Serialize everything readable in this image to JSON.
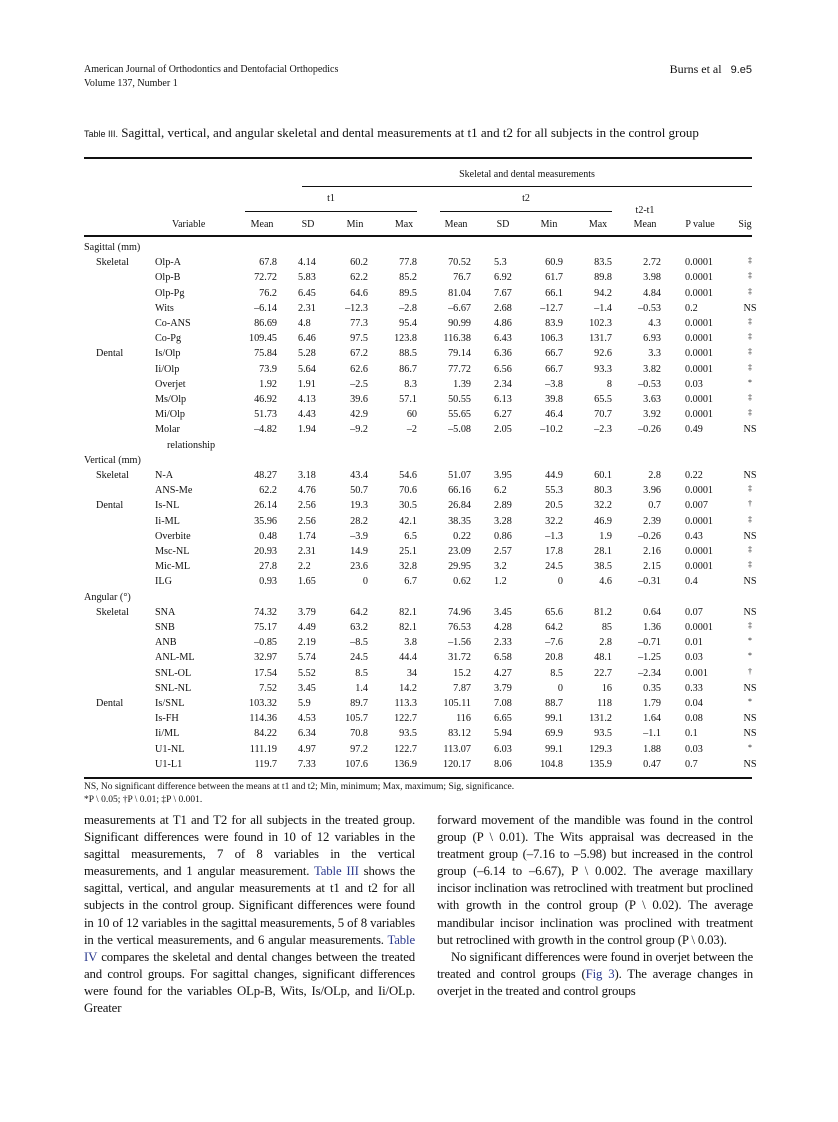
{
  "header": {
    "journal": "American Journal of Orthodontics and Dentofacial Orthopedics",
    "volume": "Volume 137, Number 1",
    "authors": "Burns et al",
    "page": "9.e5"
  },
  "table": {
    "label": "Table III.",
    "title": "Sagittal, vertical, and angular skeletal and dental measurements at t1 and t2 for all subjects in the control group",
    "spanner": "Skeletal and dental measurements",
    "t1": "t1",
    "t2": "t2",
    "diff_top": "t2-t1",
    "columns": [
      "Variable",
      "Mean",
      "SD",
      "Min",
      "Max",
      "Mean",
      "SD",
      "Min",
      "Max",
      "Mean",
      "P value",
      "Sig"
    ],
    "rows": [
      {
        "section": "Sagittal (mm)"
      },
      {
        "group": "Skeletal",
        "var": "Olp-A",
        "v": [
          "67.8",
          "4.14",
          "60.2",
          "77.8",
          "70.52",
          "5.3",
          "60.9",
          "83.5",
          "2.72",
          "0.0001",
          "‡"
        ]
      },
      {
        "var": "Olp-B",
        "v": [
          "72.72",
          "5.83",
          "62.2",
          "85.2",
          "76.7",
          "6.92",
          "61.7",
          "89.8",
          "3.98",
          "0.0001",
          "‡"
        ]
      },
      {
        "var": "Olp-Pg",
        "v": [
          "76.2",
          "6.45",
          "64.6",
          "89.5",
          "81.04",
          "7.67",
          "66.1",
          "94.2",
          "4.84",
          "0.0001",
          "‡"
        ]
      },
      {
        "var": "Wits",
        "v": [
          "–6.14",
          "2.31",
          "–12.3",
          "–2.8",
          "–6.67",
          "2.68",
          "–12.7",
          "–1.4",
          "–0.53",
          "0.2",
          "NS"
        ]
      },
      {
        "var": "Co-ANS",
        "v": [
          "86.69",
          "4.8",
          "77.3",
          "95.4",
          "90.99",
          "4.86",
          "83.9",
          "102.3",
          "4.3",
          "0.0001",
          "‡"
        ]
      },
      {
        "var": "Co-Pg",
        "v": [
          "109.45",
          "6.46",
          "97.5",
          "123.8",
          "116.38",
          "6.43",
          "106.3",
          "131.7",
          "6.93",
          "0.0001",
          "‡"
        ]
      },
      {
        "group": "Dental",
        "var": "Is/Olp",
        "v": [
          "75.84",
          "5.28",
          "67.2",
          "88.5",
          "79.14",
          "6.36",
          "66.7",
          "92.6",
          "3.3",
          "0.0001",
          "‡"
        ]
      },
      {
        "var": "Ii/Olp",
        "v": [
          "73.9",
          "5.64",
          "62.6",
          "86.7",
          "77.72",
          "6.56",
          "66.7",
          "93.3",
          "3.82",
          "0.0001",
          "‡"
        ]
      },
      {
        "var": "Overjet",
        "v": [
          "1.92",
          "1.91",
          "–2.5",
          "8.3",
          "1.39",
          "2.34",
          "–3.8",
          "8",
          "–0.53",
          "0.03",
          "*"
        ]
      },
      {
        "var": "Ms/Olp",
        "v": [
          "46.92",
          "4.13",
          "39.6",
          "57.1",
          "50.55",
          "6.13",
          "39.8",
          "65.5",
          "3.63",
          "0.0001",
          "‡"
        ]
      },
      {
        "var": "Mi/Olp",
        "v": [
          "51.73",
          "4.43",
          "42.9",
          "60",
          "55.65",
          "6.27",
          "46.4",
          "70.7",
          "3.92",
          "0.0001",
          "‡"
        ]
      },
      {
        "var": "Molar",
        "v": [
          "–4.82",
          "1.94",
          "–9.2",
          "–2",
          "–5.08",
          "2.05",
          "–10.2",
          "–2.3",
          "–0.26",
          "0.49",
          "NS"
        ]
      },
      {
        "cont": "relationship"
      },
      {
        "section": "Vertical (mm)"
      },
      {
        "group": "Skeletal",
        "var": "N-A",
        "v": [
          "48.27",
          "3.18",
          "43.4",
          "54.6",
          "51.07",
          "3.95",
          "44.9",
          "60.1",
          "2.8",
          "0.22",
          "NS"
        ]
      },
      {
        "var": "ANS-Me",
        "v": [
          "62.2",
          "4.76",
          "50.7",
          "70.6",
          "66.16",
          "6.2",
          "55.3",
          "80.3",
          "3.96",
          "0.0001",
          "‡"
        ]
      },
      {
        "group": "Dental",
        "var": "Is-NL",
        "v": [
          "26.14",
          "2.56",
          "19.3",
          "30.5",
          "26.84",
          "2.89",
          "20.5",
          "32.2",
          "0.7",
          "0.007",
          "†"
        ]
      },
      {
        "var": "Ii-ML",
        "v": [
          "35.96",
          "2.56",
          "28.2",
          "42.1",
          "38.35",
          "3.28",
          "32.2",
          "46.9",
          "2.39",
          "0.0001",
          "‡"
        ]
      },
      {
        "var": "Overbite",
        "v": [
          "0.48",
          "1.74",
          "–3.9",
          "6.5",
          "0.22",
          "0.86",
          "–1.3",
          "1.9",
          "–0.26",
          "0.43",
          "NS"
        ]
      },
      {
        "var": "Msc-NL",
        "v": [
          "20.93",
          "2.31",
          "14.9",
          "25.1",
          "23.09",
          "2.57",
          "17.8",
          "28.1",
          "2.16",
          "0.0001",
          "‡"
        ]
      },
      {
        "var": "Mic-ML",
        "v": [
          "27.8",
          "2.2",
          "23.6",
          "32.8",
          "29.95",
          "3.2",
          "24.5",
          "38.5",
          "2.15",
          "0.0001",
          "‡"
        ]
      },
      {
        "var": "ILG",
        "v": [
          "0.93",
          "1.65",
          "0",
          "6.7",
          "0.62",
          "1.2",
          "0",
          "4.6",
          "–0.31",
          "0.4",
          "NS"
        ]
      },
      {
        "section": "Angular (°)"
      },
      {
        "group": "Skeletal",
        "var": "SNA",
        "v": [
          "74.32",
          "3.79",
          "64.2",
          "82.1",
          "74.96",
          "3.45",
          "65.6",
          "81.2",
          "0.64",
          "0.07",
          "NS"
        ]
      },
      {
        "var": "SNB",
        "v": [
          "75.17",
          "4.49",
          "63.2",
          "82.1",
          "76.53",
          "4.28",
          "64.2",
          "85",
          "1.36",
          "0.0001",
          "‡"
        ]
      },
      {
        "var": "ANB",
        "v": [
          "–0.85",
          "2.19",
          "–8.5",
          "3.8",
          "–1.56",
          "2.33",
          "–7.6",
          "2.8",
          "–0.71",
          "0.01",
          "*"
        ]
      },
      {
        "var": "ANL-ML",
        "v": [
          "32.97",
          "5.74",
          "24.5",
          "44.4",
          "31.72",
          "6.58",
          "20.8",
          "48.1",
          "–1.25",
          "0.03",
          "*"
        ]
      },
      {
        "var": "SNL-OL",
        "v": [
          "17.54",
          "5.52",
          "8.5",
          "34",
          "15.2",
          "4.27",
          "8.5",
          "22.7",
          "–2.34",
          "0.001",
          "†"
        ]
      },
      {
        "var": "SNL-NL",
        "v": [
          "7.52",
          "3.45",
          "1.4",
          "14.2",
          "7.87",
          "3.79",
          "0",
          "16",
          "0.35",
          "0.33",
          "NS"
        ]
      },
      {
        "group": "Dental",
        "var": "Is/SNL",
        "v": [
          "103.32",
          "5.9",
          "89.7",
          "113.3",
          "105.11",
          "7.08",
          "88.7",
          "118",
          "1.79",
          "0.04",
          "*"
        ]
      },
      {
        "var": "Is-FH",
        "v": [
          "114.36",
          "4.53",
          "105.7",
          "122.7",
          "116",
          "6.65",
          "99.1",
          "131.2",
          "1.64",
          "0.08",
          "NS"
        ]
      },
      {
        "var": "Ii/ML",
        "v": [
          "84.22",
          "6.34",
          "70.8",
          "93.5",
          "83.12",
          "5.94",
          "69.9",
          "93.5",
          "–1.1",
          "0.1",
          "NS"
        ]
      },
      {
        "var": "U1-NL",
        "v": [
          "111.19",
          "4.97",
          "97.2",
          "122.7",
          "113.07",
          "6.03",
          "99.1",
          "129.3",
          "1.88",
          "0.03",
          "*"
        ]
      },
      {
        "var": "U1-L1",
        "v": [
          "119.7",
          "7.33",
          "107.6",
          "136.9",
          "120.17",
          "8.06",
          "104.8",
          "135.9",
          "0.47",
          "0.7",
          "NS"
        ]
      }
    ],
    "footnote1": "NS, No significant difference between the means at t1 and t2; Min, minimum; Max, maximum; Sig, significance.",
    "footnote2": "*P \\ 0.05; †P \\ 0.01; ‡P \\ 0.001."
  },
  "body": {
    "left": [
      "measurements at T1 and T2 for all subjects in the treated group. Significant differences were found in 10 of 12 variables in the sagittal measurements, 7 of 8 variables in the vertical measurements, and 1 angular measurement. ",
      "Table III",
      " shows the sagittal, vertical, and angular measurements at t1 and t2 for all subjects in the control group. Significant differences were found in 10 of 12 variables in the sagittal measurements, 5 of 8 variables in the vertical measurements, and 6 angular measurements. ",
      "Table IV",
      " compares the skeletal and dental changes between the treated and control groups. For sagittal changes, significant differences were found for the variables OLp-B, Wits, Is/OLp, and Ii/OLp. Greater"
    ],
    "right_p1": "forward movement of the mandible was found in the control group (P \\ 0.01). The Wits appraisal was decreased in the treatment group (–7.16 to –5.98) but increased in the control group (–6.14 to –6.67), P \\ 0.002. The average maxillary incisor inclination was retroclined with treatment but proclined with growth in the control group (P \\ 0.02). The average mandibular incisor inclination was proclined with treatment but retroclined with growth in the control group (P \\ 0.03).",
    "right_p2": [
      "No significant differences were found in overjet between the treated and control groups (",
      "Fig 3",
      "). The average changes in overjet in the treated and control groups"
    ]
  }
}
